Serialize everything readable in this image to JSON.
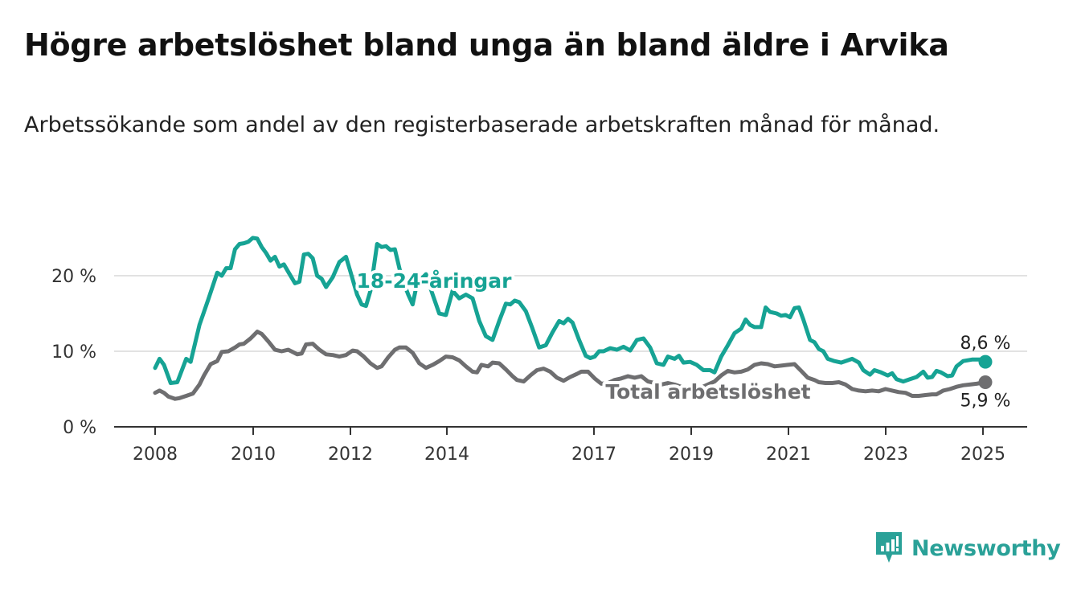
{
  "title": "Högre arbetslöshet bland unga än bland äldre i Arvika",
  "subtitle": "Arbetssökande som andel av den registerbaserade arbetskraften månad för månad.",
  "brand": {
    "name": "Newsworthy"
  },
  "colors": {
    "youth": "#16a394",
    "total": "#6e6e70",
    "grid": "#d9d9d9",
    "axis": "#333333",
    "brand": "#2aa198"
  },
  "chart_data": {
    "type": "line",
    "title": "Högre arbetslöshet bland unga än bland äldre i Arvika",
    "y_ticks": [
      {
        "value": 0,
        "label": "0 %"
      },
      {
        "value": 10,
        "label": "10 %"
      },
      {
        "value": 20,
        "label": "20 %"
      }
    ],
    "x_ticks": [
      {
        "value": 2008,
        "label": "2008"
      },
      {
        "value": 2010,
        "label": "2010"
      },
      {
        "value": 2012,
        "label": "2012"
      },
      {
        "value": 2014,
        "label": "2014"
      },
      {
        "value": 2017,
        "label": "2017"
      },
      {
        "value": 2019,
        "label": "2019"
      },
      {
        "value": 2021,
        "label": "2021"
      },
      {
        "value": 2023,
        "label": "2023"
      },
      {
        "value": 2025,
        "label": "2025"
      }
    ],
    "ylim": [
      0,
      25
    ],
    "xlim": [
      2007.6,
      2026.0
    ],
    "grid": true,
    "series": [
      {
        "name": "18-24-åringar",
        "end_label": "8,6 %",
        "points": [
          [
            2008.0,
            7.8
          ],
          [
            2008.1,
            9.0
          ],
          [
            2008.2,
            8.2
          ],
          [
            2008.35,
            5.8
          ],
          [
            2008.5,
            5.9
          ],
          [
            2008.7,
            9.0
          ],
          [
            2008.8,
            8.6
          ],
          [
            2009.0,
            13.5
          ],
          [
            2009.2,
            16.9
          ],
          [
            2009.4,
            20.4
          ],
          [
            2009.5,
            20.0
          ],
          [
            2009.6,
            21.0
          ],
          [
            2009.7,
            21.0
          ],
          [
            2009.8,
            23.5
          ],
          [
            2009.9,
            24.2
          ],
          [
            2010.0,
            24.3
          ],
          [
            2010.1,
            24.5
          ],
          [
            2010.2,
            25.0
          ],
          [
            2010.3,
            24.9
          ],
          [
            2010.4,
            23.8
          ],
          [
            2010.5,
            23.0
          ],
          [
            2010.6,
            22.0
          ],
          [
            2010.7,
            22.5
          ],
          [
            2010.8,
            21.2
          ],
          [
            2010.9,
            21.5
          ],
          [
            2011.0,
            20.5
          ],
          [
            2011.15,
            19.0
          ],
          [
            2011.25,
            19.2
          ],
          [
            2011.35,
            22.8
          ],
          [
            2011.45,
            22.9
          ],
          [
            2011.55,
            22.3
          ],
          [
            2011.65,
            20.0
          ],
          [
            2011.75,
            19.6
          ],
          [
            2011.85,
            18.5
          ],
          [
            2012.0,
            19.8
          ],
          [
            2012.15,
            21.8
          ],
          [
            2012.3,
            22.5
          ],
          [
            2012.4,
            20.5
          ],
          [
            2012.55,
            17.5
          ],
          [
            2012.65,
            16.2
          ],
          [
            2012.75,
            16.0
          ],
          [
            2012.85,
            18.0
          ],
          [
            2013.0,
            24.2
          ],
          [
            2013.1,
            23.8
          ],
          [
            2013.2,
            23.9
          ],
          [
            2013.3,
            23.4
          ],
          [
            2013.4,
            23.5
          ],
          [
            2013.55,
            19.8
          ],
          [
            2013.7,
            17.5
          ],
          [
            2013.8,
            16.2
          ],
          [
            2013.9,
            19.0
          ],
          [
            2014.1,
            20.2
          ],
          [
            2014.25,
            17.5
          ],
          [
            2014.4,
            15.0
          ],
          [
            2014.55,
            14.8
          ],
          [
            2014.7,
            18.0
          ],
          [
            2014.85,
            17.0
          ],
          [
            2015.0,
            17.5
          ],
          [
            2015.15,
            17.0
          ],
          [
            2015.3,
            14.0
          ],
          [
            2015.45,
            12.0
          ],
          [
            2015.6,
            11.5
          ],
          [
            2015.75,
            14.0
          ],
          [
            2015.9,
            16.3
          ],
          [
            2016.0,
            16.2
          ],
          [
            2016.1,
            16.7
          ],
          [
            2016.2,
            16.5
          ],
          [
            2016.35,
            15.3
          ],
          [
            2016.5,
            13.0
          ],
          [
            2016.65,
            10.5
          ],
          [
            2016.8,
            10.8
          ],
          [
            2016.95,
            12.5
          ],
          [
            2017.1,
            14.0
          ],
          [
            2017.2,
            13.7
          ],
          [
            2017.3,
            14.3
          ],
          [
            2017.4,
            13.8
          ],
          [
            2017.55,
            11.5
          ],
          [
            2017.7,
            9.4
          ],
          [
            2017.8,
            9.1
          ],
          [
            2017.9,
            9.3
          ],
          [
            2018.0,
            10.0
          ],
          [
            2018.1,
            10.0
          ],
          [
            2018.25,
            10.4
          ],
          [
            2018.4,
            10.2
          ],
          [
            2018.55,
            10.6
          ],
          [
            2018.7,
            10.1
          ],
          [
            2018.85,
            11.5
          ],
          [
            2019.0,
            11.7
          ],
          [
            2019.15,
            10.5
          ],
          [
            2019.3,
            8.4
          ],
          [
            2019.45,
            8.2
          ],
          [
            2019.55,
            9.3
          ],
          [
            2019.7,
            9.0
          ],
          [
            2019.8,
            9.4
          ],
          [
            2019.9,
            8.5
          ],
          [
            2020.05,
            8.6
          ],
          [
            2020.2,
            8.2
          ],
          [
            2020.35,
            7.5
          ],
          [
            2020.5,
            7.5
          ],
          [
            2020.6,
            7.2
          ],
          [
            2020.75,
            9.3
          ],
          [
            2020.9,
            10.8
          ],
          [
            2021.05,
            12.4
          ],
          [
            2021.2,
            13.0
          ],
          [
            2021.3,
            14.2
          ],
          [
            2021.4,
            13.5
          ],
          [
            2021.5,
            13.2
          ],
          [
            2021.65,
            13.2
          ],
          [
            2021.75,
            15.8
          ],
          [
            2021.85,
            15.2
          ],
          [
            2022.0,
            15.0
          ],
          [
            2022.1,
            14.7
          ],
          [
            2022.2,
            14.8
          ],
          [
            2022.3,
            14.5
          ],
          [
            2022.4,
            15.7
          ],
          [
            2022.5,
            15.8
          ],
          [
            2022.6,
            14.2
          ],
          [
            2022.75,
            11.5
          ],
          [
            2022.85,
            11.2
          ],
          [
            2022.95,
            10.3
          ],
          [
            2023.05,
            10.0
          ],
          [
            2023.15,
            9.0
          ],
          [
            2023.3,
            8.7
          ],
          [
            2023.45,
            8.5
          ],
          [
            2023.55,
            8.7
          ],
          [
            2023.7,
            9.0
          ],
          [
            2023.85,
            8.5
          ],
          [
            2023.95,
            7.5
          ],
          [
            2024.1,
            6.9
          ],
          [
            2024.2,
            7.5
          ],
          [
            2024.35,
            7.2
          ],
          [
            2024.5,
            6.8
          ],
          [
            2024.6,
            7.1
          ],
          [
            2024.7,
            6.3
          ],
          [
            2024.85,
            6.0
          ],
          [
            2025.0,
            6.3
          ],
          [
            2025.15,
            6.6
          ],
          [
            2025.3,
            7.3
          ],
          [
            2025.4,
            6.5
          ],
          [
            2025.5,
            6.6
          ],
          [
            2025.6,
            7.4
          ],
          [
            2025.7,
            7.2
          ],
          [
            2025.85,
            6.7
          ],
          [
            2025.95,
            6.8
          ],
          [
            2026.05,
            8.0
          ],
          [
            2026.2,
            8.7
          ],
          [
            2026.4,
            8.9
          ],
          [
            2026.6,
            8.9
          ],
          [
            2026.7,
            8.6
          ]
        ]
      },
      {
        "name": "Total arbetslöshet",
        "end_label": "5,9 %",
        "points": [
          [
            2008.0,
            4.5
          ],
          [
            2008.1,
            4.8
          ],
          [
            2008.2,
            4.5
          ],
          [
            2008.3,
            4.0
          ],
          [
            2008.45,
            3.7
          ],
          [
            2008.55,
            3.8
          ],
          [
            2008.7,
            4.1
          ],
          [
            2008.85,
            4.4
          ],
          [
            2009.0,
            5.6
          ],
          [
            2009.1,
            6.8
          ],
          [
            2009.25,
            8.3
          ],
          [
            2009.4,
            8.7
          ],
          [
            2009.5,
            9.9
          ],
          [
            2009.65,
            10.0
          ],
          [
            2009.8,
            10.5
          ],
          [
            2009.9,
            10.9
          ],
          [
            2010.0,
            11.0
          ],
          [
            2010.15,
            11.7
          ],
          [
            2010.3,
            12.6
          ],
          [
            2010.4,
            12.3
          ],
          [
            2010.55,
            11.3
          ],
          [
            2010.7,
            10.2
          ],
          [
            2010.85,
            10.0
          ],
          [
            2011.0,
            10.2
          ],
          [
            2011.1,
            9.9
          ],
          [
            2011.2,
            9.6
          ],
          [
            2011.3,
            9.7
          ],
          [
            2011.4,
            10.9
          ],
          [
            2011.55,
            11.0
          ],
          [
            2011.7,
            10.2
          ],
          [
            2011.85,
            9.6
          ],
          [
            2012.0,
            9.5
          ],
          [
            2012.15,
            9.3
          ],
          [
            2012.3,
            9.5
          ],
          [
            2012.45,
            10.1
          ],
          [
            2012.55,
            10.0
          ],
          [
            2012.7,
            9.3
          ],
          [
            2012.85,
            8.4
          ],
          [
            2013.0,
            7.8
          ],
          [
            2013.1,
            8.0
          ],
          [
            2013.25,
            9.2
          ],
          [
            2013.4,
            10.2
          ],
          [
            2013.5,
            10.5
          ],
          [
            2013.65,
            10.5
          ],
          [
            2013.8,
            9.8
          ],
          [
            2013.95,
            8.4
          ],
          [
            2014.1,
            7.8
          ],
          [
            2014.25,
            8.2
          ],
          [
            2014.4,
            8.7
          ],
          [
            2014.55,
            9.3
          ],
          [
            2014.7,
            9.2
          ],
          [
            2014.85,
            8.8
          ],
          [
            2015.0,
            8.0
          ],
          [
            2015.15,
            7.3
          ],
          [
            2015.25,
            7.2
          ],
          [
            2015.35,
            8.2
          ],
          [
            2015.5,
            8.0
          ],
          [
            2015.6,
            8.5
          ],
          [
            2015.75,
            8.4
          ],
          [
            2015.9,
            7.6
          ],
          [
            2016.05,
            6.7
          ],
          [
            2016.15,
            6.2
          ],
          [
            2016.3,
            6.0
          ],
          [
            2016.45,
            6.8
          ],
          [
            2016.6,
            7.5
          ],
          [
            2016.75,
            7.7
          ],
          [
            2016.9,
            7.3
          ],
          [
            2017.05,
            6.5
          ],
          [
            2017.2,
            6.1
          ],
          [
            2017.35,
            6.6
          ],
          [
            2017.5,
            7.0
          ],
          [
            2017.6,
            7.3
          ],
          [
            2017.75,
            7.3
          ],
          [
            2017.9,
            6.4
          ],
          [
            2018.05,
            5.7
          ],
          [
            2018.2,
            5.8
          ],
          [
            2018.35,
            6.2
          ],
          [
            2018.5,
            6.4
          ],
          [
            2018.65,
            6.7
          ],
          [
            2018.8,
            6.5
          ],
          [
            2018.95,
            6.7
          ],
          [
            2019.1,
            6.0
          ],
          [
            2019.25,
            5.8
          ],
          [
            2019.4,
            5.6
          ],
          [
            2019.55,
            5.8
          ],
          [
            2019.7,
            5.6
          ],
          [
            2019.85,
            5.3
          ],
          [
            2020.0,
            5.2
          ],
          [
            2020.15,
            5.4
          ],
          [
            2020.3,
            5.2
          ],
          [
            2020.45,
            5.6
          ],
          [
            2020.6,
            6.0
          ],
          [
            2020.75,
            6.8
          ],
          [
            2020.9,
            7.4
          ],
          [
            2021.05,
            7.2
          ],
          [
            2021.2,
            7.3
          ],
          [
            2021.35,
            7.6
          ],
          [
            2021.5,
            8.2
          ],
          [
            2021.65,
            8.4
          ],
          [
            2021.8,
            8.3
          ],
          [
            2021.95,
            8.0
          ],
          [
            2022.1,
            8.1
          ],
          [
            2022.25,
            8.2
          ],
          [
            2022.4,
            8.3
          ],
          [
            2022.55,
            7.4
          ],
          [
            2022.7,
            6.5
          ],
          [
            2022.85,
            6.2
          ],
          [
            2022.95,
            5.9
          ],
          [
            2023.1,
            5.8
          ],
          [
            2023.25,
            5.8
          ],
          [
            2023.4,
            5.9
          ],
          [
            2023.55,
            5.6
          ],
          [
            2023.7,
            5.0
          ],
          [
            2023.85,
            4.8
          ],
          [
            2024.0,
            4.7
          ],
          [
            2024.15,
            4.8
          ],
          [
            2024.3,
            4.7
          ],
          [
            2024.45,
            5.0
          ],
          [
            2024.6,
            4.8
          ],
          [
            2024.75,
            4.6
          ],
          [
            2024.9,
            4.5
          ],
          [
            2025.05,
            4.1
          ],
          [
            2025.2,
            4.1
          ],
          [
            2025.35,
            4.2
          ],
          [
            2025.5,
            4.3
          ],
          [
            2025.6,
            4.3
          ],
          [
            2025.75,
            4.8
          ],
          [
            2025.9,
            5.0
          ],
          [
            2026.05,
            5.3
          ],
          [
            2026.2,
            5.5
          ],
          [
            2026.35,
            5.6
          ],
          [
            2026.5,
            5.7
          ],
          [
            2026.7,
            5.9
          ]
        ]
      }
    ],
    "annotations": [
      {
        "text": "18-24-åringar",
        "series": 0
      },
      {
        "text": "Total arbetslöshet",
        "series": 1
      }
    ]
  }
}
